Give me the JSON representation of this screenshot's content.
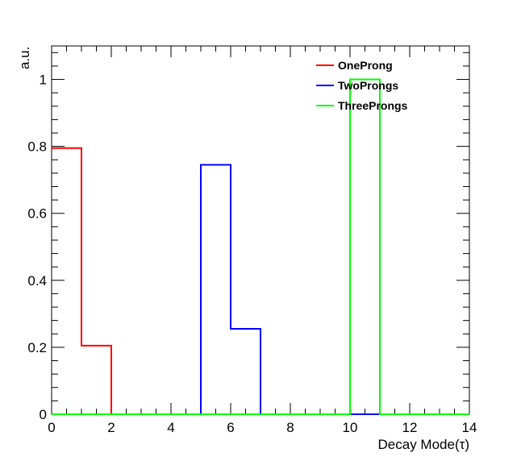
{
  "chart_data": {
    "type": "histogram-step",
    "xlabel": "Decay Mode(τ)",
    "ylabel": "a.u.",
    "xlim": [
      0,
      14
    ],
    "ylim": [
      0,
      1.1
    ],
    "xticks": [
      0,
      2,
      4,
      6,
      8,
      10,
      12,
      14
    ],
    "xtick_labels": [
      "0",
      "2",
      "4",
      "6",
      "8",
      "10",
      "12",
      "14"
    ],
    "yticks": [
      0,
      0.2,
      0.4,
      0.6,
      0.8,
      1
    ],
    "ytick_labels": [
      "0",
      "0.2",
      "0.4",
      "0.6",
      "0.8",
      "1"
    ],
    "bin_edges": [
      0,
      1,
      2,
      3,
      4,
      5,
      6,
      7,
      8,
      9,
      10,
      11,
      12,
      13,
      14
    ],
    "legend_position": "top-right",
    "series": [
      {
        "name": "OneProng",
        "color": "#ff0000",
        "values": [
          0.795,
          0.205,
          0,
          0,
          0,
          0,
          0,
          0,
          0,
          0,
          0,
          0,
          0,
          0
        ]
      },
      {
        "name": "TwoProngs",
        "color": "#0000ff",
        "values": [
          0,
          0,
          0,
          0,
          0,
          0.745,
          0.255,
          0,
          0,
          0,
          0,
          0,
          0,
          0
        ]
      },
      {
        "name": "ThreeProngs",
        "color": "#00ff00",
        "values": [
          0,
          0,
          0,
          0,
          0,
          0,
          0,
          0,
          0,
          0,
          1.0,
          0,
          0,
          0
        ]
      }
    ]
  }
}
